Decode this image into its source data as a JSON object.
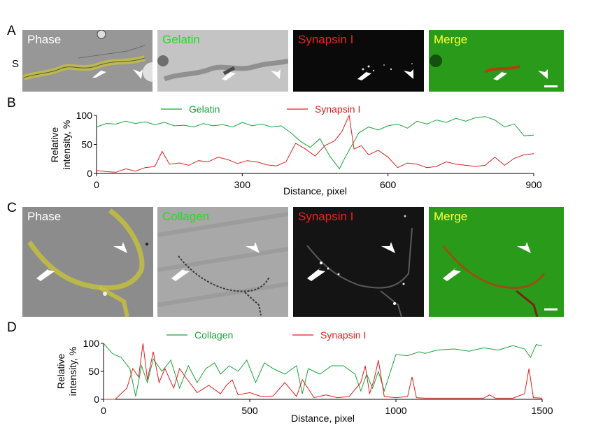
{
  "panels": {
    "A": {
      "letter": "A",
      "s_marker": "S",
      "labels": [
        "Phase",
        "Gelatin",
        "Synapsin I",
        "Merge"
      ],
      "label_colors": [
        "#ffffff",
        "#22dd22",
        "#ee2222",
        "#ffff33"
      ]
    },
    "B": {
      "letter": "B"
    },
    "C": {
      "letter": "C",
      "labels": [
        "Phase",
        "Collagen",
        "Synapsin I",
        "Merge"
      ],
      "label_colors": [
        "#ffffff",
        "#22dd22",
        "#ee2222",
        "#ffff33"
      ]
    },
    "D": {
      "letter": "D"
    }
  },
  "chart_data": [
    {
      "type": "line",
      "panel": "B",
      "ylabel_lines": [
        "Relative",
        "intensity, %"
      ],
      "xlabel": "Distance, pixel",
      "xlim": [
        0,
        900
      ],
      "ylim": [
        0,
        100
      ],
      "xticks": [
        0,
        300,
        600,
        900
      ],
      "yticks": [
        0,
        50,
        100
      ],
      "legend": [
        "Gelatin",
        "Synapsin I"
      ],
      "series": [
        {
          "name": "Gelatin",
          "color": "#1aa33a",
          "x": [
            0,
            20,
            40,
            60,
            80,
            100,
            120,
            140,
            160,
            180,
            200,
            220,
            240,
            260,
            280,
            300,
            320,
            340,
            360,
            380,
            400,
            420,
            440,
            460,
            480,
            500,
            510,
            520,
            540,
            560,
            580,
            600,
            620,
            640,
            660,
            680,
            700,
            720,
            740,
            760,
            780,
            800,
            820,
            840,
            860,
            880,
            900
          ],
          "y": [
            80,
            86,
            85,
            90,
            86,
            89,
            84,
            88,
            82,
            83,
            80,
            86,
            82,
            84,
            80,
            88,
            82,
            85,
            80,
            82,
            70,
            55,
            45,
            60,
            30,
            8,
            25,
            40,
            70,
            80,
            75,
            82,
            85,
            78,
            90,
            85,
            92,
            88,
            95,
            90,
            96,
            98,
            92,
            80,
            85,
            65,
            66
          ]
        },
        {
          "name": "Synapsin I",
          "color": "#e02020",
          "x": [
            0,
            20,
            40,
            60,
            80,
            100,
            120,
            135,
            150,
            170,
            190,
            210,
            230,
            250,
            270,
            290,
            310,
            330,
            350,
            370,
            390,
            410,
            430,
            450,
            470,
            490,
            505,
            520,
            530,
            545,
            560,
            580,
            600,
            620,
            640,
            660,
            680,
            700,
            720,
            740,
            760,
            780,
            800,
            820,
            840,
            860,
            880,
            900
          ],
          "y": [
            5,
            3,
            2,
            8,
            4,
            10,
            12,
            38,
            16,
            18,
            14,
            22,
            20,
            28,
            24,
            17,
            22,
            20,
            15,
            13,
            20,
            52,
            42,
            30,
            48,
            56,
            72,
            100,
            42,
            48,
            32,
            40,
            28,
            10,
            18,
            16,
            10,
            12,
            20,
            16,
            14,
            12,
            14,
            28,
            14,
            26,
            32,
            34
          ]
        }
      ]
    },
    {
      "type": "line",
      "panel": "D",
      "ylabel_lines": [
        "Relative",
        "intensity, %"
      ],
      "xlabel": "Distance, pixel",
      "xlim": [
        0,
        1500
      ],
      "ylim": [
        0,
        100
      ],
      "xticks": [
        0,
        500,
        1000,
        1500
      ],
      "yticks": [
        0,
        50,
        100
      ],
      "legend": [
        "Collagen",
        "Synapsin I"
      ],
      "series": [
        {
          "name": "Collagen",
          "color": "#1aa33a",
          "x": [
            0,
            30,
            60,
            90,
            110,
            130,
            150,
            170,
            200,
            230,
            260,
            290,
            320,
            350,
            380,
            400,
            430,
            460,
            490,
            520,
            550,
            580,
            620,
            660,
            680,
            700,
            740,
            780,
            820,
            860,
            880,
            900,
            920,
            940,
            960,
            1000,
            1040,
            1080,
            1100,
            1140,
            1200,
            1250,
            1300,
            1350,
            1400,
            1440,
            1460,
            1480,
            1500
          ],
          "y": [
            100,
            82,
            75,
            55,
            5,
            60,
            30,
            72,
            50,
            70,
            20,
            60,
            30,
            55,
            65,
            45,
            60,
            50,
            70,
            30,
            65,
            55,
            45,
            60,
            10,
            55,
            45,
            60,
            60,
            45,
            15,
            45,
            20,
            50,
            15,
            80,
            78,
            85,
            82,
            88,
            90,
            86,
            92,
            88,
            96,
            90,
            75,
            98,
            95
          ]
        },
        {
          "name": "Synapsin I",
          "color": "#e02020",
          "x": [
            0,
            40,
            80,
            100,
            120,
            135,
            150,
            170,
            190,
            210,
            240,
            260,
            280,
            320,
            360,
            400,
            420,
            440,
            460,
            500,
            540,
            580,
            620,
            660,
            680,
            720,
            760,
            800,
            840,
            880,
            895,
            910,
            925,
            940,
            960,
            1000,
            1040,
            1055,
            1070,
            1100,
            1200,
            1300,
            1320,
            1340,
            1400,
            1440,
            1455,
            1470,
            1500
          ],
          "y": [
            0,
            0,
            20,
            55,
            40,
            100,
            35,
            85,
            30,
            55,
            20,
            55,
            40,
            12,
            25,
            10,
            25,
            35,
            8,
            12,
            5,
            6,
            30,
            5,
            35,
            3,
            8,
            3,
            5,
            30,
            60,
            10,
            35,
            70,
            5,
            3,
            5,
            40,
            3,
            2,
            2,
            2,
            8,
            2,
            2,
            10,
            55,
            3,
            2
          ]
        }
      ]
    }
  ]
}
